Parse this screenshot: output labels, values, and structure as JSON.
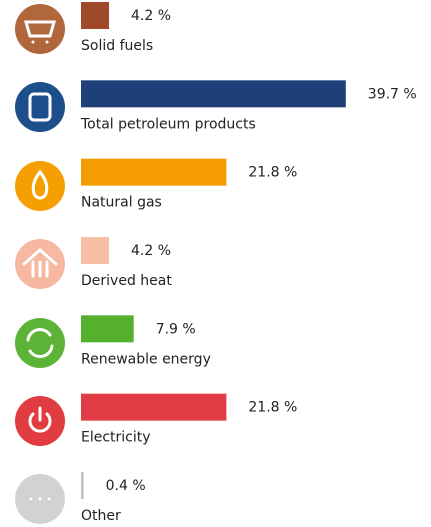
{
  "chart_data": {
    "type": "bar",
    "categories": [
      "Solid fuels",
      "Total petroleum products",
      "Natural gas",
      "Derived heat",
      "Renewable energy",
      "Electricity",
      "Other"
    ],
    "values": [
      4.2,
      39.7,
      21.8,
      4.2,
      7.9,
      21.8,
      0.4
    ],
    "value_labels": [
      "4.2 %",
      "39.7 %",
      "21.8 %",
      "4.2 %",
      "7.9 %",
      "21.8 %",
      "0.4 %"
    ],
    "colors": [
      "#a0482a",
      "#1e3f7a",
      "#f59c00",
      "#f7bfa3",
      "#55b030",
      "#e23d47",
      "#c4c4c4"
    ]
  }
}
